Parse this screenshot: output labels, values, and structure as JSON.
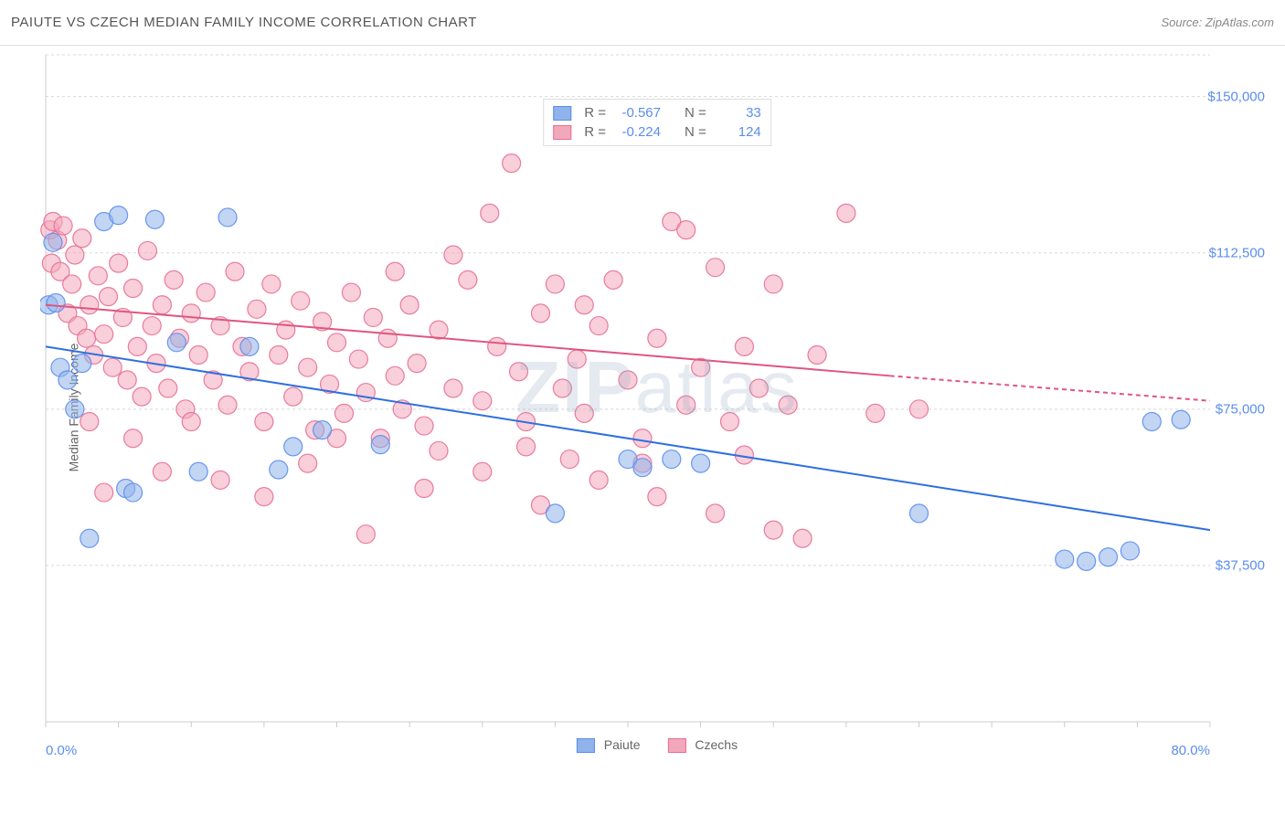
{
  "header": {
    "title": "PAIUTE VS CZECH MEDIAN FAMILY INCOME CORRELATION CHART",
    "source_prefix": "Source: ",
    "source": "ZipAtlas.com"
  },
  "watermark": {
    "zip": "ZIP",
    "atlas": "atlas"
  },
  "chart": {
    "type": "scatter",
    "background_color": "#ffffff",
    "grid_color": "#d8d8d8",
    "axis_color": "#cccccc",
    "ylabel": "Median Family Income",
    "ylabel_color": "#666666",
    "xlim": [
      0,
      80
    ],
    "ylim": [
      0,
      160000
    ],
    "y_gridlines": [
      37500,
      75000,
      112500,
      150000,
      160000
    ],
    "y_tick_labels": {
      "37500": "$37,500",
      "75000": "$75,000",
      "112500": "$112,500",
      "150000": "$150,000"
    },
    "x_minor_ticks": [
      0,
      5,
      10,
      15,
      20,
      25,
      30,
      35,
      40,
      45,
      50,
      55,
      60,
      65,
      70,
      75,
      80
    ],
    "x_tick_labels": {
      "0": "0.0%",
      "80": "80.0%"
    },
    "tick_label_color": "#5b8def",
    "label_fontsize": 14,
    "tick_fontsize": 15,
    "marker_radius": 10,
    "marker_opacity": 0.55,
    "regression_line_width": 2,
    "series": [
      {
        "name": "Paiute",
        "color": "#8fb3ea",
        "stroke": "#5b8def",
        "line_color": "#2f6fe0",
        "R": "-0.567",
        "N": "33",
        "regression": {
          "x0": 0,
          "y0": 90000,
          "x1": 80,
          "y1": 46000,
          "dash_from_x": 80
        },
        "points": [
          [
            0.2,
            100000
          ],
          [
            0.5,
            115000
          ],
          [
            0.7,
            100500
          ],
          [
            1.0,
            85000
          ],
          [
            1.5,
            82000
          ],
          [
            2.0,
            75000
          ],
          [
            2.5,
            86000
          ],
          [
            3.0,
            44000
          ],
          [
            4.0,
            120000
          ],
          [
            5.0,
            121500
          ],
          [
            5.5,
            56000
          ],
          [
            6.0,
            55000
          ],
          [
            7.5,
            120500
          ],
          [
            9.0,
            91000
          ],
          [
            10.5,
            60000
          ],
          [
            12.5,
            121000
          ],
          [
            14.0,
            90000
          ],
          [
            16.0,
            60500
          ],
          [
            17.0,
            66000
          ],
          [
            19.0,
            70000
          ],
          [
            23.0,
            66500
          ],
          [
            35.0,
            50000
          ],
          [
            40.0,
            63000
          ],
          [
            41.0,
            61000
          ],
          [
            43.0,
            63000
          ],
          [
            45.0,
            62000
          ],
          [
            70.0,
            39000
          ],
          [
            71.5,
            38500
          ],
          [
            73.0,
            39500
          ],
          [
            74.5,
            41000
          ],
          [
            76.0,
            72000
          ],
          [
            78.0,
            72500
          ],
          [
            60.0,
            50000
          ]
        ]
      },
      {
        "name": "Czechs",
        "color": "#f2a8bb",
        "stroke": "#e86f92",
        "line_color": "#e05580",
        "R": "-0.224",
        "N": "124",
        "regression": {
          "x0": 0,
          "y0": 100000,
          "x1": 58,
          "y1": 83000,
          "dash_from_x": 58,
          "x2": 80,
          "y2": 77000
        },
        "points": [
          [
            0.3,
            118000
          ],
          [
            0.4,
            110000
          ],
          [
            0.5,
            120000
          ],
          [
            0.8,
            115500
          ],
          [
            1.0,
            108000
          ],
          [
            1.2,
            119000
          ],
          [
            1.5,
            98000
          ],
          [
            1.8,
            105000
          ],
          [
            2.0,
            112000
          ],
          [
            2.2,
            95000
          ],
          [
            2.5,
            116000
          ],
          [
            2.8,
            92000
          ],
          [
            3.0,
            100000
          ],
          [
            3.3,
            88000
          ],
          [
            3.6,
            107000
          ],
          [
            4.0,
            93000
          ],
          [
            4.3,
            102000
          ],
          [
            4.6,
            85000
          ],
          [
            5.0,
            110000
          ],
          [
            5.3,
            97000
          ],
          [
            5.6,
            82000
          ],
          [
            6.0,
            104000
          ],
          [
            6.3,
            90000
          ],
          [
            6.6,
            78000
          ],
          [
            7.0,
            113000
          ],
          [
            7.3,
            95000
          ],
          [
            7.6,
            86000
          ],
          [
            8.0,
            100000
          ],
          [
            8.4,
            80000
          ],
          [
            8.8,
            106000
          ],
          [
            9.2,
            92000
          ],
          [
            9.6,
            75000
          ],
          [
            10.0,
            98000
          ],
          [
            10.5,
            88000
          ],
          [
            11.0,
            103000
          ],
          [
            11.5,
            82000
          ],
          [
            12.0,
            95000
          ],
          [
            12.5,
            76000
          ],
          [
            13.0,
            108000
          ],
          [
            13.5,
            90000
          ],
          [
            14.0,
            84000
          ],
          [
            14.5,
            99000
          ],
          [
            15.0,
            72000
          ],
          [
            15.5,
            105000
          ],
          [
            16.0,
            88000
          ],
          [
            16.5,
            94000
          ],
          [
            17.0,
            78000
          ],
          [
            17.5,
            101000
          ],
          [
            18.0,
            85000
          ],
          [
            18.5,
            70000
          ],
          [
            19.0,
            96000
          ],
          [
            19.5,
            81000
          ],
          [
            20.0,
            91000
          ],
          [
            20.5,
            74000
          ],
          [
            21.0,
            103000
          ],
          [
            21.5,
            87000
          ],
          [
            22.0,
            79000
          ],
          [
            22.5,
            97000
          ],
          [
            23.0,
            68000
          ],
          [
            23.5,
            92000
          ],
          [
            24.0,
            83000
          ],
          [
            24.5,
            75000
          ],
          [
            25.0,
            100000
          ],
          [
            25.5,
            86000
          ],
          [
            26.0,
            71000
          ],
          [
            27.0,
            94000
          ],
          [
            28.0,
            80000
          ],
          [
            29.0,
            106000
          ],
          [
            30.0,
            77000
          ],
          [
            30.5,
            122000
          ],
          [
            31.0,
            90000
          ],
          [
            32.0,
            134000
          ],
          [
            32.5,
            84000
          ],
          [
            33.0,
            72000
          ],
          [
            34.0,
            98000
          ],
          [
            35.0,
            105000
          ],
          [
            35.5,
            80000
          ],
          [
            36.0,
            63000
          ],
          [
            36.5,
            87000
          ],
          [
            37.0,
            74000
          ],
          [
            38.0,
            95000
          ],
          [
            39.0,
            106000
          ],
          [
            40.0,
            82000
          ],
          [
            41.0,
            68000
          ],
          [
            42.0,
            92000
          ],
          [
            43.0,
            120000
          ],
          [
            44.0,
            76000
          ],
          [
            45.0,
            85000
          ],
          [
            46.0,
            109000
          ],
          [
            47.0,
            72000
          ],
          [
            48.0,
            90000
          ],
          [
            49.0,
            80000
          ],
          [
            50.0,
            105000
          ],
          [
            51.0,
            76000
          ],
          [
            52.0,
            44000
          ],
          [
            53.0,
            88000
          ],
          [
            55.0,
            122000
          ],
          [
            57.0,
            74000
          ],
          [
            60.0,
            75000
          ],
          [
            4.0,
            55000
          ],
          [
            8.0,
            60000
          ],
          [
            12.0,
            58000
          ],
          [
            15.0,
            54000
          ],
          [
            18.0,
            62000
          ],
          [
            22.0,
            45000
          ],
          [
            26.0,
            56000
          ],
          [
            30.0,
            60000
          ],
          [
            34.0,
            52000
          ],
          [
            38.0,
            58000
          ],
          [
            42.0,
            54000
          ],
          [
            46.0,
            50000
          ],
          [
            50.0,
            46000
          ],
          [
            10.0,
            72000
          ],
          [
            20.0,
            68000
          ],
          [
            27.0,
            65000
          ],
          [
            33.0,
            66000
          ],
          [
            41.0,
            62000
          ],
          [
            48.0,
            64000
          ],
          [
            24.0,
            108000
          ],
          [
            28.0,
            112000
          ],
          [
            37.0,
            100000
          ],
          [
            44.0,
            118000
          ],
          [
            3.0,
            72000
          ],
          [
            6.0,
            68000
          ]
        ]
      }
    ]
  },
  "legend": {
    "series1_label": "Paiute",
    "series2_label": "Czechs",
    "r_label": "R =",
    "n_label": "N ="
  }
}
